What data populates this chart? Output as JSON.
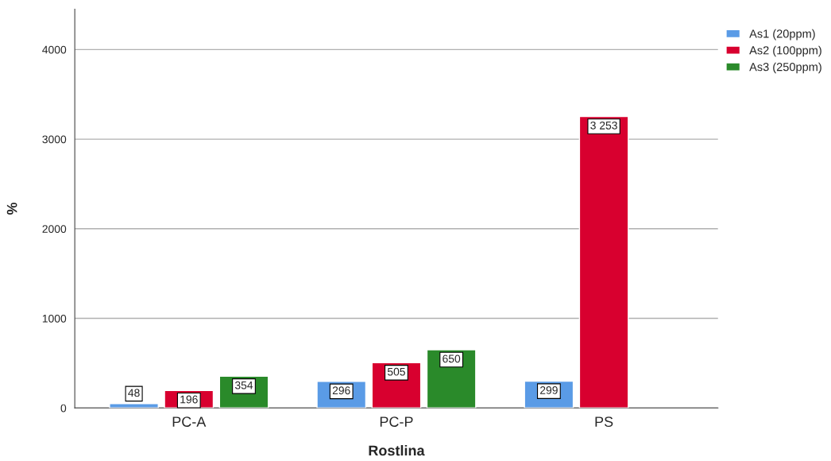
{
  "chart_data": {
    "type": "bar",
    "xlabel": "Rostlina",
    "ylabel": "%",
    "categories": [
      "PC-A",
      "PC-P",
      "PS"
    ],
    "series": [
      {
        "name": "As1 (20ppm)",
        "color": "#5a9be6",
        "values": [
          48,
          296,
          299
        ],
        "value_labels": [
          "48",
          "296",
          "299"
        ]
      },
      {
        "name": "As2 (100ppm)",
        "color": "#d8002f",
        "values": [
          196,
          505,
          3253
        ],
        "value_labels": [
          "196",
          "505",
          "3 253"
        ]
      },
      {
        "name": "As3 (250ppm)",
        "color": "#2a8a2a",
        "values": [
          354,
          650,
          null
        ],
        "value_labels": [
          "354",
          "650",
          null
        ]
      }
    ],
    "ylim": [
      0,
      4450
    ],
    "yticks": [
      0,
      1000,
      2000,
      3000,
      4000
    ],
    "grid": "y",
    "legend": "top right"
  }
}
